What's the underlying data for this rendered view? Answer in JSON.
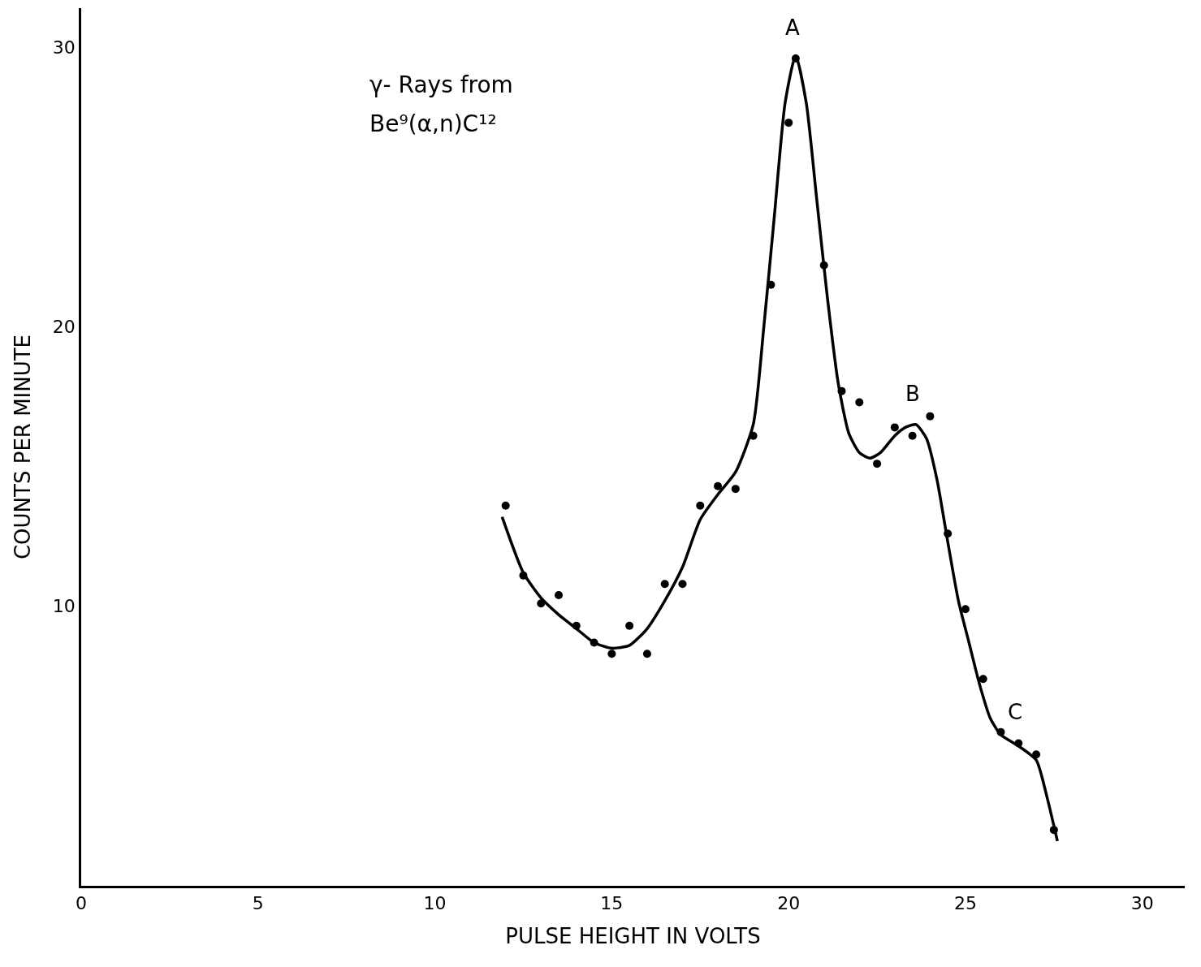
{
  "chart_data": {
    "type": "scatter",
    "xlabel": "PULSE HEIGHT IN VOLTS",
    "ylabel": "COUNTS PER MINUTE",
    "xlim": [
      0,
      31.2
    ],
    "ylim": [
      0,
      31.4
    ],
    "xticks": [
      0,
      5,
      10,
      15,
      20,
      25,
      30
    ],
    "yticks": [
      10,
      20,
      30
    ],
    "grid": false,
    "marker": "circle",
    "series": [
      {
        "color": "#000000",
        "x": [
          12,
          12.5,
          13,
          13.5,
          14,
          14.5,
          15,
          15.5,
          16,
          16.5,
          17,
          17.5,
          18,
          18.5,
          19,
          19.5,
          20,
          20.2,
          21,
          21.5,
          22,
          22.5,
          23,
          23.5,
          24,
          24.5,
          25,
          25.5,
          26,
          26.5,
          27,
          27.5
        ],
        "values": [
          13.6,
          11.1,
          10.1,
          10.4,
          9.3,
          8.7,
          8.3,
          9.3,
          8.3,
          10.8,
          10.8,
          13.6,
          14.3,
          14.2,
          16.1,
          21.5,
          27.3,
          29.6,
          22.2,
          17.7,
          17.3,
          15.1,
          16.4,
          16.1,
          16.8,
          12.6,
          9.9,
          7.4,
          5.5,
          5.1,
          4.7,
          2.0
        ]
      },
      {
        "type": "line",
        "marker": "none",
        "line_style": "solid",
        "color": "#000000",
        "x": [
          11.9,
          12.5,
          13,
          13.5,
          14,
          14.5,
          15,
          15.5,
          16,
          16.5,
          17,
          17.5,
          18,
          18.5,
          19,
          19.3,
          19.6,
          19.9,
          20.2,
          20.5,
          20.8,
          21.1,
          21.4,
          21.7,
          22.0,
          22.3,
          22.6,
          23.0,
          23.3,
          23.6,
          23.9,
          24.2,
          24.5,
          24.8,
          25.1,
          25.4,
          25.7,
          26.0,
          26.5,
          27.0,
          27.3,
          27.6
        ],
        "values": [
          13.2,
          11.2,
          10.3,
          9.7,
          9.2,
          8.7,
          8.5,
          8.6,
          9.2,
          10.2,
          11.4,
          13.1,
          14.0,
          14.8,
          16.5,
          20,
          24,
          28,
          29.7,
          28.0,
          24.5,
          21.0,
          18.0,
          16.2,
          15.5,
          15.3,
          15.5,
          16.1,
          16.4,
          16.5,
          16.0,
          14.5,
          12.3,
          10.2,
          8.7,
          7.2,
          6.0,
          5.4,
          5.0,
          4.5,
          3.2,
          1.6
        ]
      }
    ],
    "annotations": [
      "γ- Rays from",
      "Be⁹(α,n)C¹²",
      {
        "text": "A",
        "x": 20.2,
        "y": 29.6
      },
      {
        "text": "B",
        "x": 23.6,
        "y": 16.5
      },
      {
        "text": "C",
        "x": 26.5,
        "y": 5.1
      }
    ]
  }
}
